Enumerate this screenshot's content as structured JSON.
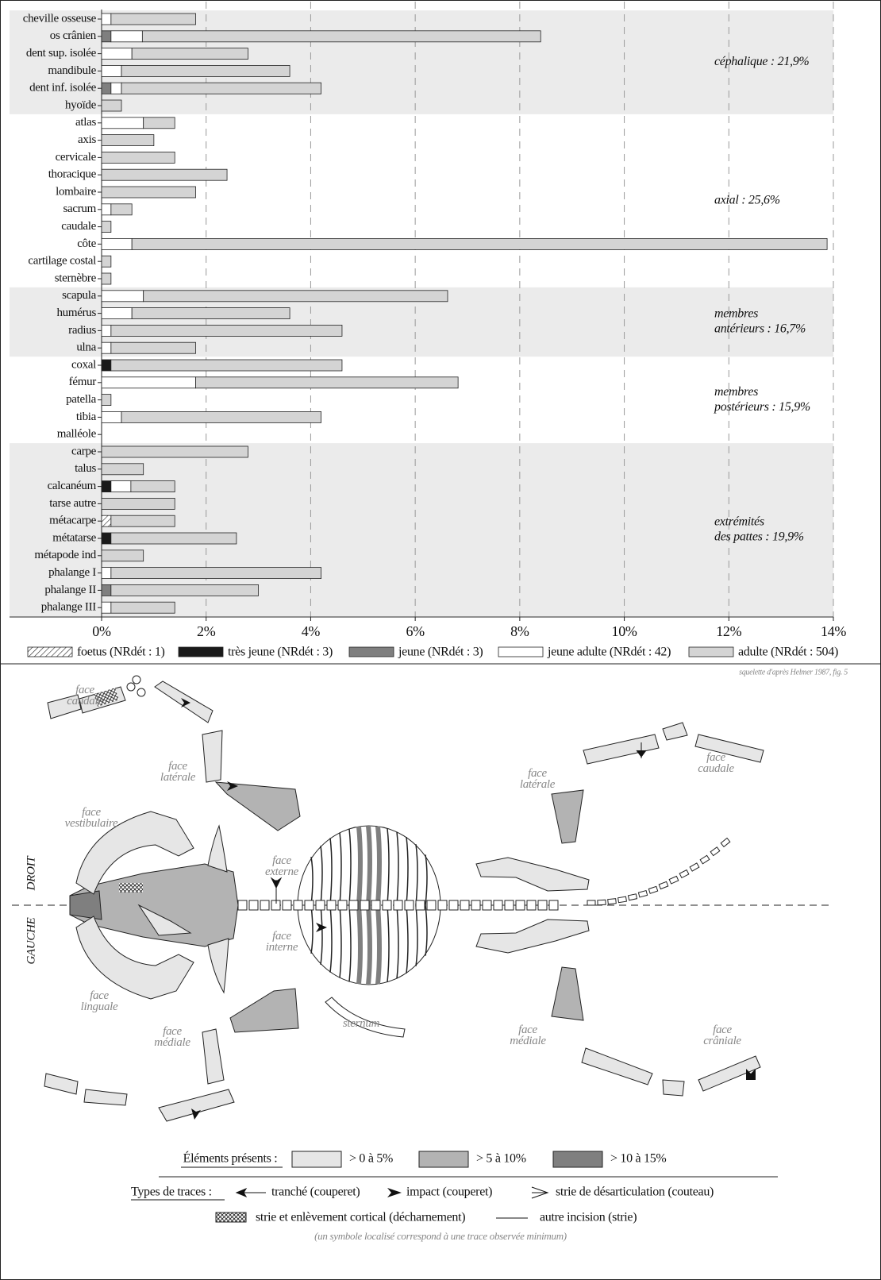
{
  "chart_data": {
    "type": "stacked-barh",
    "categories": [
      "cheville osseuse",
      "os crânien",
      "dent sup. isolée",
      "mandibule",
      "dent inf. isolée",
      "hyoïde",
      "atlas",
      "axis",
      "cervicale",
      "thoracique",
      "lombaire",
      "sacrum",
      "caudale",
      "côte",
      "cartilage costal",
      "sternèbre",
      "scapula",
      "humérus",
      "radius",
      "ulna",
      "coxal",
      "fémur",
      "patella",
      "tibia",
      "malléole",
      "carpe",
      "talus",
      "calcanéum",
      "tarse autre",
      "métacarpe",
      "métatarse",
      "métapode ind",
      "phalange I",
      "phalange II",
      "phalange III"
    ],
    "series": [
      {
        "name": "foetus (NRdét : 1)",
        "color": "#ffffff",
        "pattern": "hatch",
        "values": [
          0,
          0,
          0,
          0,
          0,
          0,
          0,
          0,
          0,
          0,
          0,
          0,
          0,
          0,
          0,
          0,
          0,
          0,
          0,
          0,
          0,
          0,
          0,
          0,
          0,
          0,
          0,
          0,
          0,
          0.18,
          0,
          0,
          0,
          0,
          0
        ]
      },
      {
        "name": "très jeune (NRdét : 3)",
        "color": "#1a1a1a",
        "values": [
          0,
          0,
          0,
          0,
          0,
          0,
          0,
          0,
          0,
          0,
          0,
          0,
          0,
          0,
          0,
          0,
          0,
          0,
          0,
          0,
          0.18,
          0,
          0,
          0,
          0,
          0,
          0,
          0.18,
          0,
          0,
          0.18,
          0,
          0,
          0,
          0
        ]
      },
      {
        "name": "jeune (NRdét : 3)",
        "color": "#7f7f7f",
        "values": [
          0,
          0.18,
          0,
          0,
          0.18,
          0,
          0,
          0,
          0,
          0,
          0,
          0,
          0,
          0,
          0,
          0,
          0,
          0,
          0,
          0,
          0,
          0,
          0,
          0,
          0,
          0,
          0,
          0,
          0,
          0,
          0,
          0,
          0,
          0.18,
          0
        ]
      },
      {
        "name": "jeune adulte (NRdét : 42)",
        "color": "#ffffff",
        "values": [
          0.18,
          0.6,
          0.58,
          0.38,
          0.2,
          0,
          0.8,
          0,
          0,
          0,
          0,
          0.18,
          0,
          0.58,
          0,
          0,
          0.8,
          0.58,
          0.18,
          0.18,
          0,
          1.8,
          0,
          0.38,
          0,
          0,
          0,
          0.38,
          0,
          0,
          0,
          0,
          0.18,
          0,
          0.18
        ]
      },
      {
        "name": "adulte (NRdét : 504)",
        "color": "#d4d4d4",
        "values": [
          1.62,
          7.62,
          2.22,
          3.22,
          3.82,
          0.38,
          0.6,
          1.0,
          1.4,
          2.4,
          1.8,
          0.4,
          0.18,
          13.3,
          0.18,
          0.18,
          5.82,
          3.02,
          4.42,
          1.62,
          4.42,
          5.02,
          0.18,
          3.82,
          0,
          2.8,
          0.8,
          0.84,
          1.4,
          1.22,
          2.4,
          0.8,
          4.02,
          2.82,
          1.22
        ]
      }
    ],
    "groups": [
      {
        "label": [
          "céphalique : 21,9%"
        ]
      },
      {
        "label": [
          "axial : 25,6%"
        ]
      },
      {
        "label": [
          "membres",
          "antérieurs : 16,7%"
        ]
      },
      {
        "label": [
          "membres",
          "postérieurs : 15,9%"
        ]
      },
      {
        "label": [
          "extrémités",
          "des pattes : 19,9%"
        ]
      }
    ],
    "xlim": [
      0,
      14
    ],
    "xticks": [
      {
        "value": 0,
        "label": "0%"
      },
      {
        "value": 2,
        "label": "2%"
      },
      {
        "value": 4,
        "label": "4%"
      },
      {
        "value": 6,
        "label": "6%"
      },
      {
        "value": 8,
        "label": "8%"
      },
      {
        "value": 10,
        "label": "10%"
      },
      {
        "value": 12,
        "label": "12%"
      },
      {
        "value": 14,
        "label": "14%"
      }
    ],
    "grid": true,
    "legend": "bottom"
  },
  "diagram": {
    "source": "squelette d'après Helmer 1987, fig. 5",
    "sides": [
      "DROIT",
      "GAUCHE"
    ],
    "face_labels": [
      [
        "face",
        "caudale"
      ],
      [
        "face",
        "latérale"
      ],
      [
        "face",
        "vestibulaire"
      ],
      [
        "face",
        "externe"
      ],
      [
        "face",
        "interne"
      ],
      [
        "face",
        "linguale"
      ],
      [
        "face",
        "médiale"
      ],
      [
        "sternum"
      ],
      [
        "face",
        "latérale"
      ],
      [
        "face",
        "caudale"
      ],
      [
        "face",
        "médiale"
      ],
      [
        "face",
        "crâniale"
      ]
    ],
    "presence_title": "Éléments présents :",
    "presence_classes": [
      {
        "label": "> 0 à 5%",
        "color": "#e6e6e6"
      },
      {
        "label": "> 5 à 10%",
        "color": "#b3b3b3"
      },
      {
        "label": "> 10 à 15%",
        "color": "#7f7f7f"
      }
    ],
    "traces_title": "Types de traces :",
    "traces": [
      "tranché (couperet)",
      "impact (couperet)",
      "strie de désarticulation (couteau)",
      "strie et enlèvement cortical (décharnement)",
      "autre incision (strie)"
    ],
    "note": "(un symbole localisé correspond à une trace observée minimum)"
  }
}
